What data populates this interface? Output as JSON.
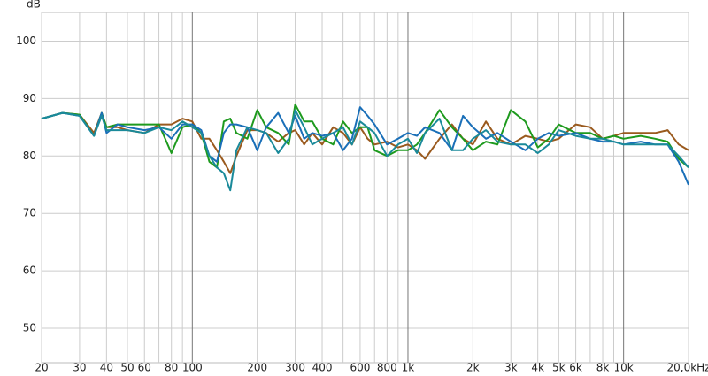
{
  "chart_data": {
    "type": "line",
    "y_label": "dB",
    "xscale": "log",
    "grid": true,
    "xlim": [
      20,
      20000
    ],
    "ylim": [
      44,
      105
    ],
    "yticks": [
      50,
      60,
      70,
      80,
      90,
      100
    ],
    "xticks": [
      20,
      30,
      40,
      50,
      60,
      {
        "value": 70,
        "label": null
      },
      80,
      {
        "value": 90,
        "label": null
      },
      100,
      200,
      300,
      400,
      {
        "value": 500,
        "label": null
      },
      600,
      {
        "value": 700,
        "label": null
      },
      800,
      {
        "value": 900,
        "label": null
      },
      {
        "value": 1000,
        "label": "1k"
      },
      {
        "value": 2000,
        "label": "2k"
      },
      {
        "value": 3000,
        "label": "3k"
      },
      {
        "value": 4000,
        "label": "4k"
      },
      {
        "value": 5000,
        "label": "5k"
      },
      {
        "value": 6000,
        "label": "6k"
      },
      {
        "value": 7000,
        "label": null
      },
      {
        "value": 8000,
        "label": "8k"
      },
      {
        "value": 9000,
        "label": null
      },
      {
        "value": 10000,
        "label": "10k"
      },
      {
        "value": 20000,
        "label": "20,0kHz"
      }
    ],
    "x": [
      20,
      25,
      30,
      35,
      38,
      40,
      45,
      50,
      60,
      70,
      80,
      90,
      100,
      110,
      120,
      130,
      140,
      150,
      160,
      180,
      200,
      220,
      250,
      280,
      300,
      330,
      360,
      400,
      450,
      500,
      550,
      600,
      650,
      700,
      800,
      900,
      1000,
      1100,
      1200,
      1400,
      1600,
      1800,
      2000,
      2300,
      2600,
      3000,
      3500,
      4000,
      4500,
      5000,
      6000,
      7000,
      8000,
      9000,
      10000,
      12000,
      14000,
      16000,
      18000,
      20000
    ],
    "series": [
      {
        "color": "#9a5a1e",
        "values": [
          86.5,
          87.5,
          87.2,
          84,
          87.5,
          85,
          85,
          84.5,
          84,
          85.5,
          85.5,
          86.5,
          86,
          83,
          83,
          81,
          79,
          77,
          80,
          84.5,
          84.5,
          84,
          82.5,
          84,
          84.5,
          82,
          84,
          82,
          85,
          84,
          82,
          85,
          83,
          82,
          82.5,
          81.5,
          82,
          81,
          79.5,
          83,
          85.5,
          83,
          82,
          86,
          83,
          82,
          83.5,
          83,
          82.5,
          83,
          85.5,
          85,
          83,
          83.5,
          84,
          84,
          84,
          84.5,
          82,
          81
        ]
      },
      {
        "color": "#1e9a1e",
        "values": [
          86.5,
          87.5,
          87.2,
          83.5,
          87.5,
          85,
          85.5,
          85.5,
          85.5,
          85.5,
          80.5,
          85,
          85.5,
          84,
          79,
          78,
          86,
          86.5,
          84,
          83,
          88,
          85,
          84,
          82,
          89,
          86,
          86,
          83,
          82,
          86,
          84,
          85,
          85,
          81,
          80,
          81,
          81,
          82,
          84,
          88,
          85,
          83,
          81,
          82.5,
          82,
          88,
          86,
          81.5,
          83,
          85.5,
          84,
          84,
          83,
          83.5,
          83,
          83.5,
          83,
          82.5,
          79.5,
          78
        ]
      },
      {
        "color": "#1a6fb8",
        "values": [
          86.5,
          87.5,
          87,
          83.5,
          87.5,
          84,
          85.5,
          85,
          84.5,
          85,
          83,
          85.5,
          85.5,
          84.5,
          80,
          79,
          84,
          85.5,
          85.5,
          85,
          81,
          85,
          87.5,
          84,
          87,
          83,
          84,
          83.5,
          84,
          81,
          83,
          88.5,
          87,
          85.5,
          82,
          83,
          84,
          83.5,
          85,
          84,
          81,
          87,
          85,
          83,
          84,
          82.5,
          81,
          83,
          84,
          83.5,
          84,
          83,
          82.5,
          82.5,
          82,
          82.5,
          82,
          82,
          79,
          75
        ]
      },
      {
        "color": "#1a8a9a",
        "values": [
          86.5,
          87.5,
          87,
          83.5,
          87,
          84.5,
          84.5,
          84.5,
          84,
          85,
          84.5,
          86,
          85,
          84,
          80,
          78,
          77,
          74,
          81,
          85,
          84.5,
          84,
          80.5,
          83,
          88,
          85,
          82,
          83,
          84,
          85,
          82,
          86,
          85,
          84,
          80,
          82,
          83,
          80.5,
          84,
          86.5,
          81,
          81,
          83,
          84.5,
          82.5,
          82,
          82,
          80.5,
          82,
          84.5,
          83.5,
          83,
          83,
          82.5,
          82,
          82,
          82,
          82,
          80,
          78
        ]
      }
    ]
  }
}
